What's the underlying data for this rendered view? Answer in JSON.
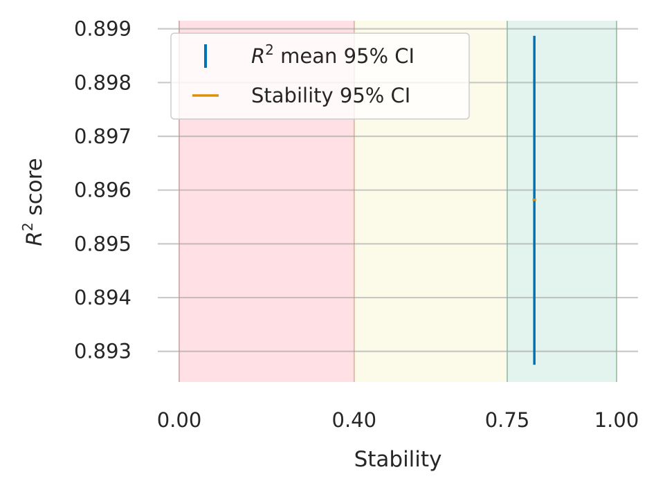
{
  "chart_data": {
    "type": "scatter",
    "title": "",
    "xlabel": "Stability",
    "ylabel": {
      "prefix": "R",
      "sup": "2",
      "suffix": " score"
    },
    "xlim": [
      0.0,
      1.0
    ],
    "ylim": [
      0.89243,
      0.89915
    ],
    "x_ticks": [
      0.0,
      0.4,
      0.75,
      1.0
    ],
    "x_tick_labels": [
      "0.00",
      "0.40",
      "0.75",
      "1.00"
    ],
    "y_ticks": [
      0.893,
      0.894,
      0.895,
      0.896,
      0.897,
      0.898,
      0.899
    ],
    "y_tick_labels": [
      "0.893",
      "0.894",
      "0.895",
      "0.896",
      "0.897",
      "0.898",
      "0.899"
    ],
    "grid": "horizontal",
    "regions": [
      {
        "from": 0.0,
        "to": 0.4,
        "color": "#ffe1e5",
        "edge": "#d8b1b5"
      },
      {
        "from": 0.4,
        "to": 0.75,
        "color": "#fcfbea",
        "edge": "#d9bfa8"
      },
      {
        "from": 0.75,
        "to": 1.0,
        "color": "#e3f4ee",
        "edge": "#a8c8ad"
      }
    ],
    "points": [
      {
        "x": 0.812,
        "y": 0.89582,
        "r2_ci": [
          0.89275,
          0.89887
        ],
        "stability_ci": [
          0.808,
          0.816
        ]
      }
    ],
    "series": [
      {
        "name_prefix": "R",
        "name_sup": "2",
        "name_suffix": " mean 95% CI",
        "color": "#0173b2",
        "marker": "vertical-bar"
      },
      {
        "name": "Stability 95% CI",
        "color": "#de8f05",
        "marker": "horizontal-bar"
      }
    ],
    "legend": {
      "placement": "upper-left"
    }
  }
}
